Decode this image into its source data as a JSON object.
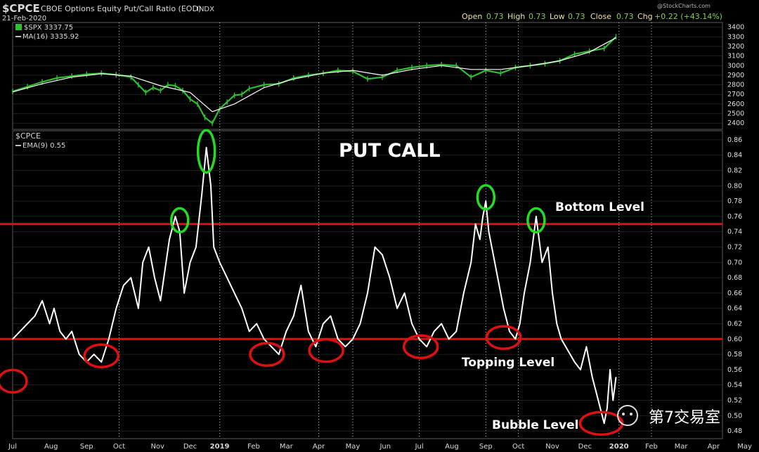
{
  "header": {
    "symbol": "$CPCE",
    "title": "CBOE Options Equity Put/Call Ratio (EOD)",
    "exchange": "INDX",
    "date": "21-Feb-2020",
    "watermark": "@StockCharts.com",
    "ohlc": {
      "open_label": "Open",
      "open": "0.73",
      "high_label": "High",
      "high": "0.73",
      "low_label": "Low",
      "low": "0.73",
      "close_label": "Close",
      "close": "0.73",
      "chg_label": "Chg",
      "chg": "+0.22 (+43.14%)"
    }
  },
  "colors": {
    "background": "#000000",
    "price": "#2fbf2f",
    "ma": "#ffffff",
    "ratio": "#ffffff",
    "level_line": "#e11010",
    "peak_circle": "#22dd22",
    "trough_circle": "#e11010",
    "grid": "#3a3a3a"
  },
  "chart_data": [
    {
      "type": "line",
      "panel": "top",
      "series": [
        {
          "name": "$SPX 3337.75",
          "role": "price",
          "x": [
            0,
            10,
            20,
            30,
            40,
            50,
            60,
            70,
            80,
            85,
            90,
            95,
            100,
            105,
            110,
            115,
            120,
            125,
            130,
            135,
            140,
            145,
            150,
            155,
            160,
            170,
            180,
            190,
            200,
            210,
            220,
            230,
            240,
            250,
            260,
            270,
            280,
            290,
            300,
            310,
            320,
            330,
            340,
            350,
            360,
            370,
            380,
            390,
            400,
            408
          ],
          "values": [
            2730,
            2780,
            2830,
            2870,
            2890,
            2910,
            2920,
            2905,
            2880,
            2800,
            2720,
            2770,
            2740,
            2800,
            2790,
            2740,
            2650,
            2600,
            2460,
            2400,
            2550,
            2620,
            2690,
            2700,
            2760,
            2800,
            2810,
            2870,
            2900,
            2920,
            2950,
            2940,
            2860,
            2880,
            2950,
            2980,
            3000,
            3010,
            3000,
            2880,
            2950,
            2920,
            2980,
            3000,
            3020,
            3050,
            3120,
            3150,
            3180,
            3300
          ]
        },
        {
          "name": "MA(16) 3335.92",
          "role": "ma",
          "x": [
            0,
            20,
            40,
            60,
            80,
            100,
            120,
            135,
            150,
            170,
            190,
            210,
            230,
            250,
            270,
            290,
            310,
            330,
            350,
            370,
            390,
            408
          ],
          "values": [
            2725,
            2810,
            2880,
            2915,
            2890,
            2790,
            2720,
            2520,
            2600,
            2770,
            2860,
            2920,
            2950,
            2900,
            2960,
            3000,
            2960,
            2960,
            3000,
            3050,
            3140,
            3290
          ]
        }
      ],
      "ylim": [
        2350,
        3420
      ],
      "yticks": [
        2400,
        2500,
        2600,
        2700,
        2800,
        2900,
        3000,
        3100,
        3200,
        3300,
        3400
      ]
    },
    {
      "type": "line",
      "panel": "bottom",
      "title": "PUT CALL",
      "series": [
        {
          "name": "EMA(9) 0.55",
          "role": "ratio",
          "x": [
            0,
            5,
            10,
            15,
            20,
            25,
            28,
            32,
            36,
            40,
            45,
            50,
            55,
            60,
            65,
            70,
            75,
            80,
            85,
            88,
            92,
            96,
            100,
            103,
            106,
            110,
            113,
            116,
            120,
            124,
            128,
            131,
            134,
            136,
            140,
            145,
            150,
            155,
            160,
            165,
            170,
            175,
            180,
            185,
            190,
            195,
            200,
            205,
            210,
            215,
            220,
            225,
            230,
            235,
            240,
            245,
            250,
            255,
            260,
            265,
            270,
            275,
            280,
            285,
            290,
            295,
            300,
            305,
            310,
            313,
            316,
            318,
            320,
            322,
            325,
            328,
            332,
            336,
            340,
            343,
            346,
            350,
            354,
            358,
            362,
            365,
            368,
            371,
            374,
            377,
            380,
            384,
            388,
            392,
            396,
            400,
            402,
            404,
            406,
            408
          ],
          "values": [
            0.6,
            0.61,
            0.62,
            0.63,
            0.65,
            0.62,
            0.64,
            0.61,
            0.6,
            0.61,
            0.58,
            0.57,
            0.58,
            0.57,
            0.6,
            0.64,
            0.67,
            0.68,
            0.64,
            0.7,
            0.72,
            0.68,
            0.65,
            0.69,
            0.73,
            0.76,
            0.74,
            0.66,
            0.7,
            0.72,
            0.79,
            0.85,
            0.8,
            0.72,
            0.7,
            0.68,
            0.66,
            0.64,
            0.61,
            0.62,
            0.6,
            0.59,
            0.58,
            0.61,
            0.63,
            0.67,
            0.61,
            0.59,
            0.62,
            0.63,
            0.6,
            0.59,
            0.6,
            0.62,
            0.66,
            0.72,
            0.71,
            0.68,
            0.64,
            0.66,
            0.62,
            0.6,
            0.59,
            0.61,
            0.62,
            0.6,
            0.61,
            0.66,
            0.7,
            0.75,
            0.73,
            0.76,
            0.78,
            0.74,
            0.71,
            0.68,
            0.64,
            0.61,
            0.6,
            0.62,
            0.66,
            0.7,
            0.76,
            0.7,
            0.72,
            0.66,
            0.62,
            0.6,
            0.59,
            0.58,
            0.57,
            0.56,
            0.59,
            0.55,
            0.52,
            0.49,
            0.51,
            0.56,
            0.52,
            0.55
          ]
        }
      ],
      "ylim": [
        0.47,
        0.87
      ],
      "yticks": [
        0.48,
        0.5,
        0.52,
        0.54,
        0.56,
        0.58,
        0.6,
        0.62,
        0.64,
        0.66,
        0.68,
        0.7,
        0.72,
        0.74,
        0.76,
        0.78,
        0.8,
        0.82,
        0.84,
        0.86
      ],
      "reference_lines": [
        {
          "value": 0.75,
          "label": "Bottom Level"
        },
        {
          "value": 0.6,
          "label": "Topping Level"
        }
      ],
      "annotations": [
        {
          "text": "Bubble Level"
        }
      ],
      "highlighted_peaks": [
        {
          "x": 113,
          "y": 0.755
        },
        {
          "x": 131,
          "y": 0.845
        },
        {
          "x": 320,
          "y": 0.785
        },
        {
          "x": 354,
          "y": 0.755
        }
      ],
      "highlighted_troughs": [
        {
          "x": 0,
          "y": 0.545
        },
        {
          "x": 60,
          "y": 0.578
        },
        {
          "x": 172,
          "y": 0.58
        },
        {
          "x": 212,
          "y": 0.585
        },
        {
          "x": 276,
          "y": 0.59
        },
        {
          "x": 332,
          "y": 0.602
        },
        {
          "x": 398,
          "y": 0.49
        }
      ],
      "xlim": [
        0,
        480
      ],
      "xticks": [
        {
          "x": 0,
          "label": "Jul"
        },
        {
          "x": 26,
          "label": "Aug"
        },
        {
          "x": 50,
          "label": "Sep"
        },
        {
          "x": 72,
          "label": "Oct"
        },
        {
          "x": 98,
          "label": "Nov"
        },
        {
          "x": 120,
          "label": "Dec"
        },
        {
          "x": 140,
          "label": "2019"
        },
        {
          "x": 163,
          "label": "Feb"
        },
        {
          "x": 185,
          "label": "Mar"
        },
        {
          "x": 207,
          "label": "Apr"
        },
        {
          "x": 230,
          "label": "May"
        },
        {
          "x": 252,
          "label": "Jun"
        },
        {
          "x": 275,
          "label": "Jul"
        },
        {
          "x": 297,
          "label": "Aug"
        },
        {
          "x": 320,
          "label": "Sep"
        },
        {
          "x": 342,
          "label": "Oct"
        },
        {
          "x": 365,
          "label": "Nov"
        },
        {
          "x": 387,
          "label": "Dec"
        },
        {
          "x": 410,
          "label": "2020"
        },
        {
          "x": 432,
          "label": "Feb"
        },
        {
          "x": 452,
          "label": "Mar"
        },
        {
          "x": 474,
          "label": "Apr"
        },
        {
          "x": 495,
          "label": "May"
        }
      ],
      "vertical_dotted_at": [
        72,
        140,
        207,
        230,
        275,
        320,
        342,
        410,
        432
      ]
    }
  ],
  "watermark_badge": {
    "text": "第7交易室"
  }
}
